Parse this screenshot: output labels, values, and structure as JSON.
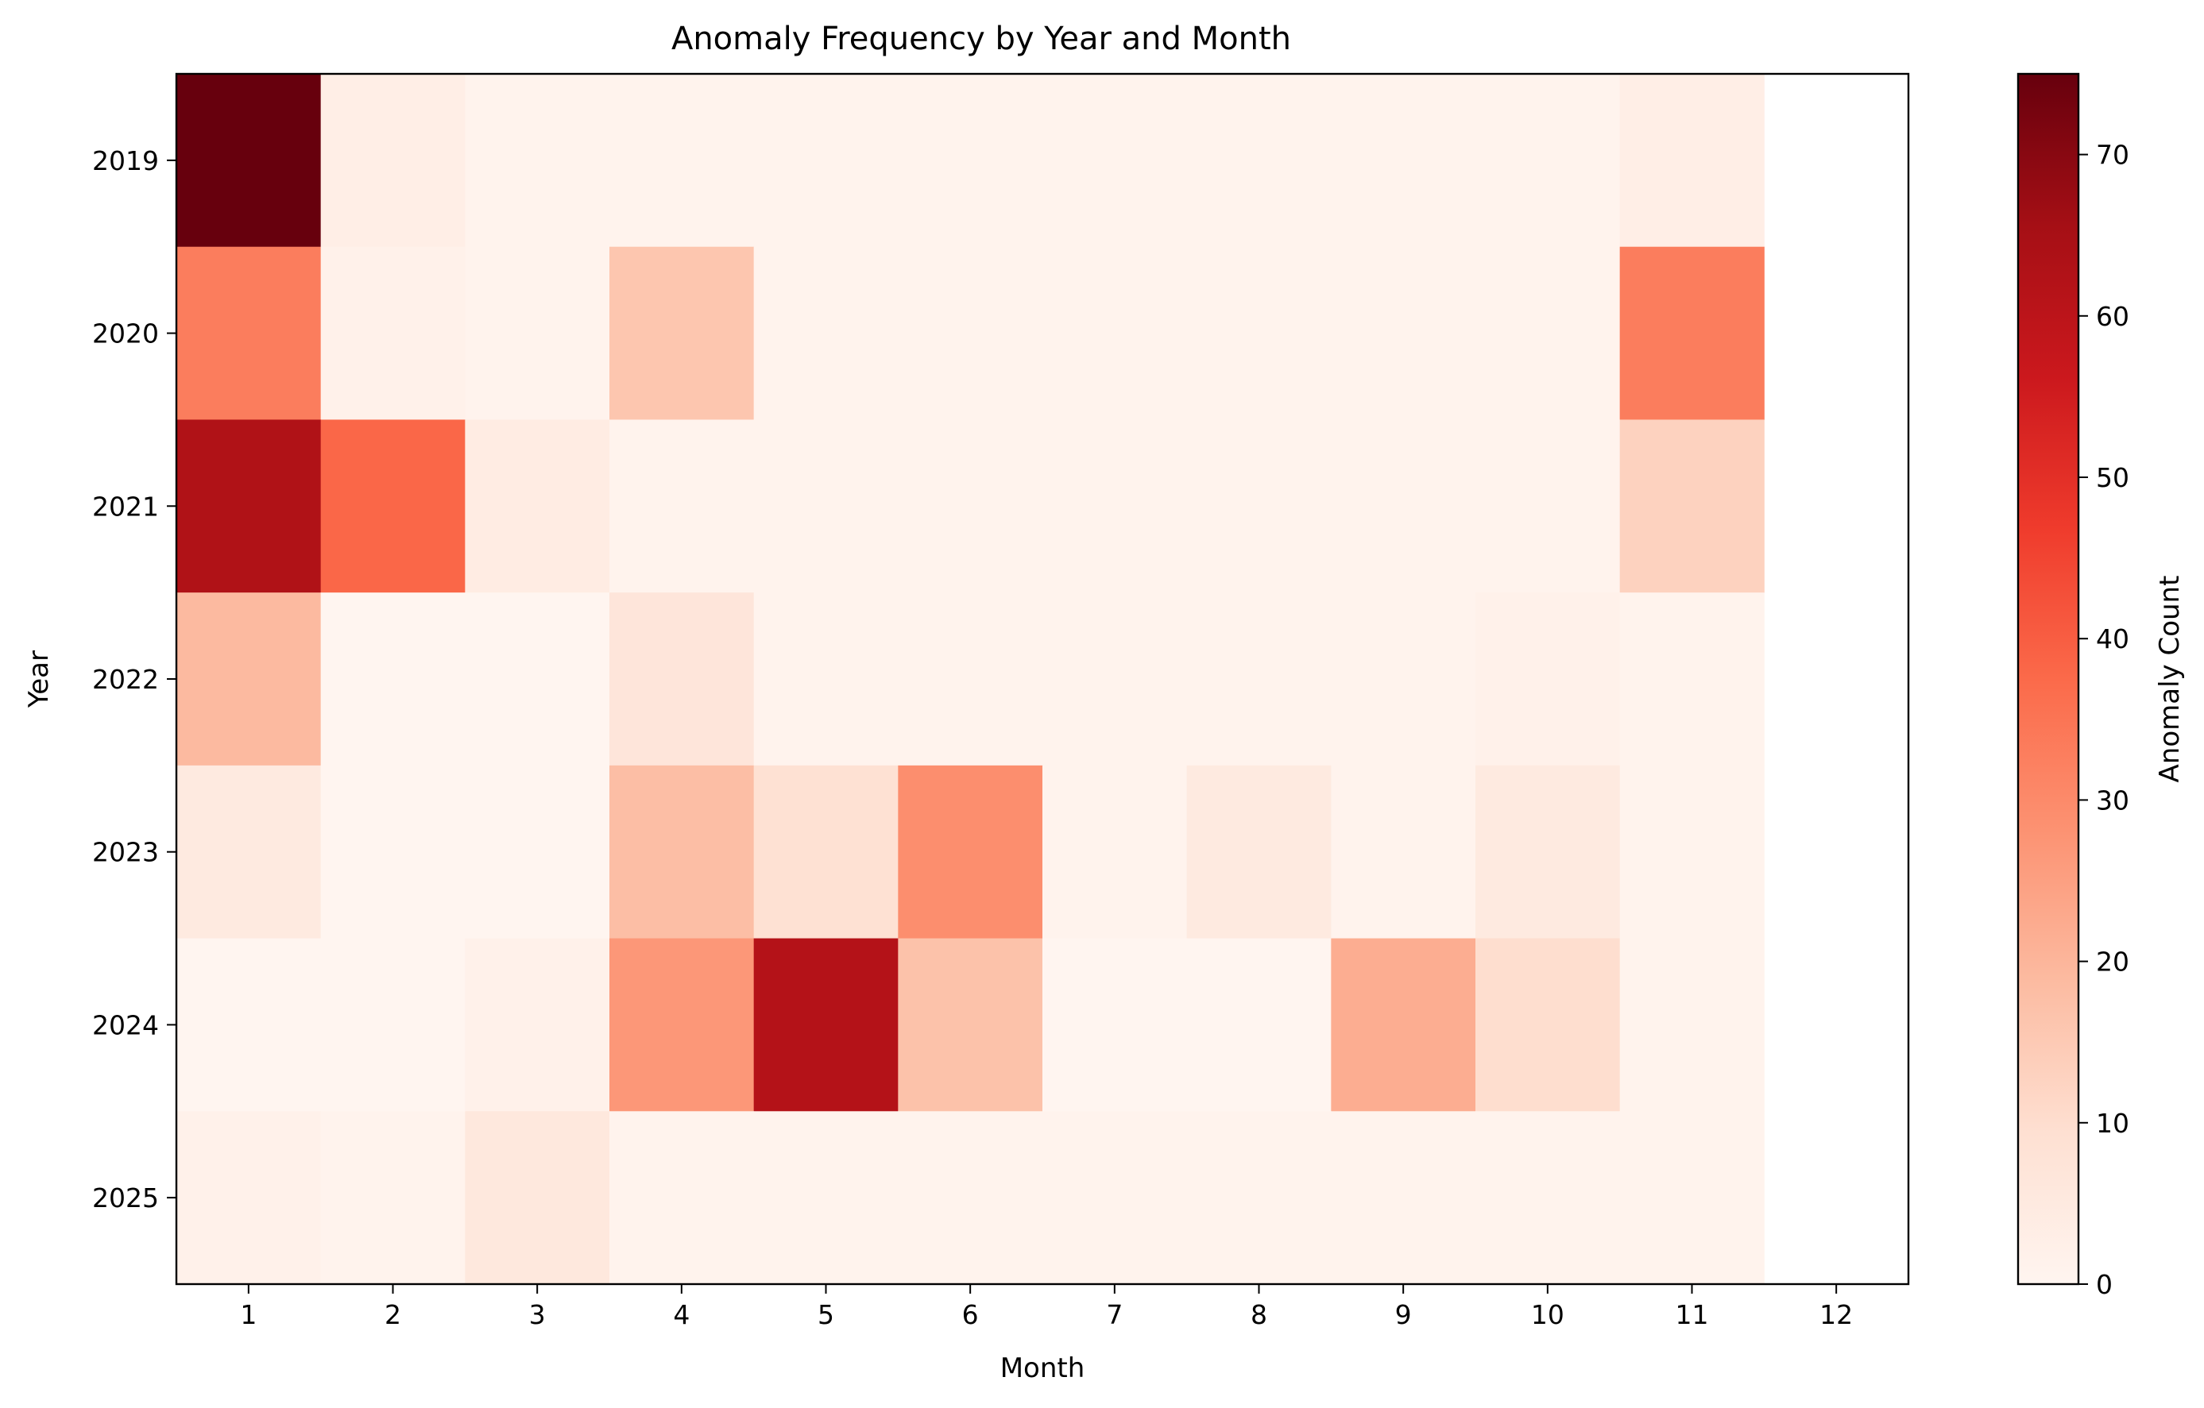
{
  "chart_data": {
    "type": "heatmap",
    "title": "Anomaly Frequency by Year and Month",
    "xlabel": "Month",
    "ylabel": "Year",
    "x_ticks": [
      1,
      2,
      3,
      4,
      5,
      6,
      7,
      8,
      9,
      10,
      11,
      12
    ],
    "years": [
      "2019",
      "2020",
      "2021",
      "2022",
      "2023",
      "2024",
      "2025"
    ],
    "months": [
      1,
      2,
      3,
      4,
      5,
      6,
      7,
      8,
      9,
      10,
      11
    ],
    "values": [
      [
        75,
        3,
        1,
        1,
        1,
        1,
        1,
        1,
        1,
        1,
        3
      ],
      [
        33,
        2,
        1,
        16,
        1,
        1,
        1,
        1,
        1,
        1,
        33
      ],
      [
        63,
        38,
        4,
        1,
        1,
        1,
        1,
        1,
        1,
        1,
        13
      ],
      [
        19,
        0,
        0,
        7,
        1,
        1,
        1,
        1,
        1,
        2,
        1
      ],
      [
        5,
        0,
        0,
        18,
        9,
        29,
        1,
        5,
        1,
        5,
        1
      ],
      [
        0,
        0,
        2,
        27,
        62,
        17,
        0,
        0,
        22,
        10,
        1
      ],
      [
        2,
        1,
        6,
        1,
        1,
        1,
        1,
        1,
        1,
        1,
        1
      ]
    ],
    "colormap": "Reds",
    "vmin": 0,
    "vmax": 75,
    "colorbar": {
      "label": "Anomaly Count",
      "ticks": [
        0,
        10,
        20,
        30,
        40,
        50,
        60,
        70
      ]
    },
    "grid": false
  }
}
